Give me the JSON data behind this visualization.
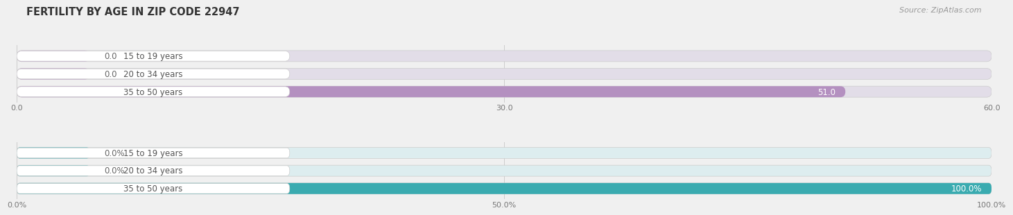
{
  "title": "FERTILITY BY AGE IN ZIP CODE 22947",
  "source": "Source: ZipAtlas.com",
  "background_color": "#f0f0f0",
  "top_chart": {
    "categories": [
      "15 to 19 years",
      "20 to 34 years",
      "35 to 50 years"
    ],
    "values": [
      0.0,
      0.0,
      51.0
    ],
    "min_stub": 4.5,
    "xlim": [
      0.0,
      60.0
    ],
    "xticks": [
      0.0,
      30.0,
      60.0
    ],
    "xtick_labels": [
      "0.0",
      "30.0",
      "60.0"
    ],
    "bar_color": "#b490c0",
    "bar_bg_color": "#e2dde8",
    "value_labels": [
      "0.0",
      "0.0",
      "51.0"
    ]
  },
  "bottom_chart": {
    "categories": [
      "15 to 19 years",
      "20 to 34 years",
      "35 to 50 years"
    ],
    "values": [
      0.0,
      0.0,
      100.0
    ],
    "min_stub": 7.5,
    "xlim": [
      0.0,
      100.0
    ],
    "xticks": [
      0.0,
      50.0,
      100.0
    ],
    "xtick_labels": [
      "0.0%",
      "50.0%",
      "100.0%"
    ],
    "bar_color": "#3aabb0",
    "bar_bg_color": "#ddedef",
    "value_labels": [
      "0.0%",
      "0.0%",
      "100.0%"
    ]
  },
  "label_font_size": 8.5,
  "title_font_size": 10.5,
  "source_font_size": 8,
  "category_font_size": 8.5,
  "tick_font_size": 8
}
